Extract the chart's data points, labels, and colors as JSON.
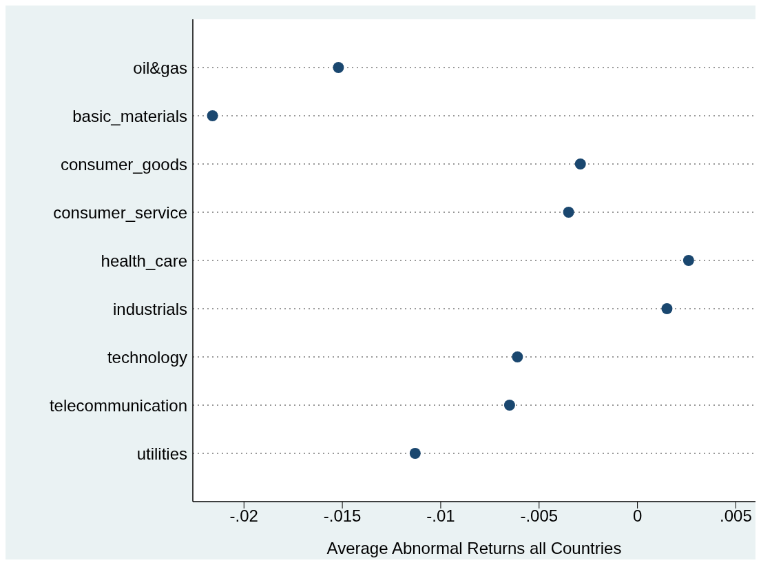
{
  "chart_data": {
    "type": "scatter",
    "xlabel": "Average Abnormal Returns all Countries",
    "categories": [
      "oil&gas",
      "basic_materials",
      "consumer_goods",
      "consumer_service",
      "health_care",
      "industrials",
      "technology",
      "telecommunication",
      "utilities"
    ],
    "values": [
      -0.0152,
      -0.0216,
      -0.0029,
      -0.0035,
      0.0026,
      0.0015,
      -0.0061,
      -0.0065,
      -0.0113
    ],
    "color": "#1a476f",
    "marker": "circle",
    "orientation": "horizontal",
    "xlim": [
      -0.0226,
      0.006
    ],
    "xticks": [
      {
        "value": -0.02,
        "label": "-.02"
      },
      {
        "value": -0.015,
        "label": "-.015"
      },
      {
        "value": -0.01,
        "label": "-.01"
      },
      {
        "value": -0.005,
        "label": "-.005"
      },
      {
        "value": 0,
        "label": "0"
      },
      {
        "value": 0.005,
        "label": ".005"
      }
    ],
    "grid": "y"
  }
}
